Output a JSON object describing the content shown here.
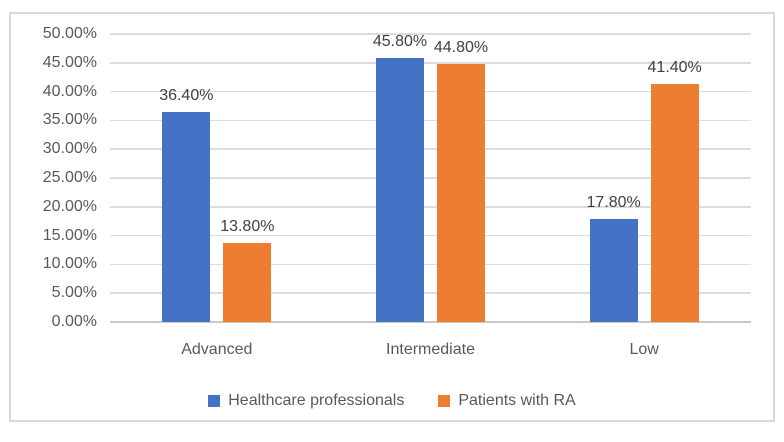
{
  "window": {
    "background": "#FFFFFF",
    "frame_border_color": "#D9D9D9"
  },
  "chart_data": {
    "type": "bar",
    "title": "",
    "xlabel": "",
    "ylabel": "",
    "categories": [
      "Advanced",
      "Intermediate",
      "Low"
    ],
    "series": [
      {
        "name": "Healthcare professionals",
        "color": "#4472C4",
        "values": [
          36.4,
          45.8,
          17.8
        ],
        "data_labels": [
          "36.40%",
          "45.80%",
          "17.80%"
        ]
      },
      {
        "name": "Patients with RA",
        "color": "#ED7D31",
        "values": [
          13.8,
          44.8,
          41.4
        ],
        "data_labels": [
          "13.80%",
          "44.80%",
          "41.40%"
        ]
      }
    ],
    "y_axis": {
      "min": 0,
      "max": 50,
      "step": 5,
      "tick_labels": [
        "50.00%",
        "45.00%",
        "40.00%",
        "35.00%",
        "30.00%",
        "25.00%",
        "20.00%",
        "15.00%",
        "10.00%",
        "5.00%",
        "0.00%"
      ],
      "format": "percent"
    },
    "grid": true,
    "legend_position": "bottom",
    "colors": {
      "gridline": "#DCDCDC",
      "axis_line": "#C9C9C9",
      "axis_text": "#595959",
      "data_label_text": "#404040"
    }
  }
}
